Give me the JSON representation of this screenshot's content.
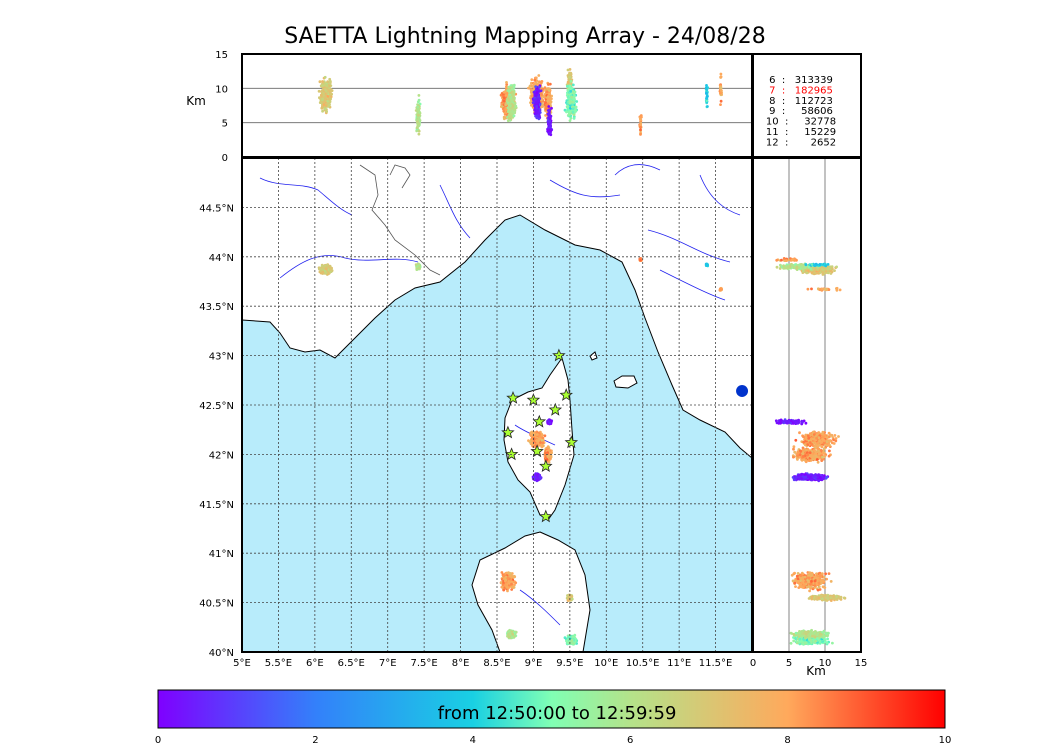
{
  "chart_data": {
    "type": "scatter",
    "title": "SAETTA Lightning Mapping Array - 24/08/28",
    "colorbar": {
      "label": "from 12:50:00 to 12:59:59",
      "ticks": [
        "0",
        "2",
        "4",
        "6",
        "8",
        "10"
      ],
      "range": [
        0,
        10
      ]
    },
    "map": {
      "lon_range": [
        5,
        12
      ],
      "lat_range": [
        40,
        45
      ],
      "lon_ticks": [
        "5°E",
        "5.5°E",
        "6°E",
        "6.5°E",
        "7°E",
        "7.5°E",
        "8°E",
        "8.5°E",
        "9°E",
        "9.5°E",
        "10°E",
        "10.5°E",
        "11°E",
        "11.5°E"
      ],
      "lat_ticks": [
        "40°N",
        "40.5°N",
        "41°N",
        "41.5°N",
        "42°N",
        "42.5°N",
        "43°N",
        "43.5°N",
        "44°N",
        "44.5°N"
      ],
      "grid": true,
      "sea_color": "#b8ecfb"
    },
    "altitude_panel": {
      "ylabel": "Km",
      "ylim": [
        0,
        15
      ],
      "yticks": [
        "0",
        "5",
        "10",
        "15"
      ]
    },
    "side_panel": {
      "xlabel": "Km",
      "xlim": [
        0,
        15
      ],
      "xticks": [
        "0",
        "5",
        "10",
        "15"
      ]
    },
    "stations": [
      {
        "lon": 9.35,
        "lat": 43.0
      },
      {
        "lon": 8.72,
        "lat": 42.57
      },
      {
        "lon": 9.0,
        "lat": 42.55
      },
      {
        "lon": 9.45,
        "lat": 42.6
      },
      {
        "lon": 9.3,
        "lat": 42.45
      },
      {
        "lon": 9.08,
        "lat": 42.33
      },
      {
        "lon": 8.65,
        "lat": 42.22
      },
      {
        "lon": 9.52,
        "lat": 42.12
      },
      {
        "lon": 8.7,
        "lat": 42.0
      },
      {
        "lon": 9.05,
        "lat": 42.03
      },
      {
        "lon": 9.17,
        "lat": 41.88
      },
      {
        "lon": 9.17,
        "lat": 41.37
      }
    ],
    "lightning_clusters": [
      {
        "lon": 6.15,
        "lat": 43.87,
        "spread_lon": 0.12,
        "spread_lat": 0.07,
        "time": 7,
        "alt": 9
      },
      {
        "lon": 7.42,
        "lat": 43.9,
        "spread_lon": 0.04,
        "spread_lat": 0.04,
        "time": 6,
        "alt": 6
      },
      {
        "lon": 9.05,
        "lat": 42.15,
        "spread_lon": 0.15,
        "spread_lat": 0.12,
        "time": 8,
        "alt": 9
      },
      {
        "lon": 9.2,
        "lat": 42.0,
        "spread_lon": 0.06,
        "spread_lat": 0.1,
        "time": 8,
        "alt": 8
      },
      {
        "lon": 9.05,
        "lat": 41.77,
        "spread_lon": 0.07,
        "spread_lat": 0.05,
        "time": 0.5,
        "alt": 8
      },
      {
        "lon": 9.22,
        "lat": 42.33,
        "spread_lon": 0.04,
        "spread_lat": 0.03,
        "time": 0.3,
        "alt": 5
      },
      {
        "lon": 8.65,
        "lat": 40.72,
        "spread_lon": 0.13,
        "spread_lat": 0.13,
        "time": 8,
        "alt": 8
      },
      {
        "lon": 9.5,
        "lat": 40.55,
        "spread_lon": 0.05,
        "spread_lat": 0.05,
        "time": 7,
        "alt": 10
      },
      {
        "lon": 9.52,
        "lat": 40.12,
        "spread_lon": 0.1,
        "spread_lat": 0.06,
        "time": 5,
        "alt": 8
      },
      {
        "lon": 8.7,
        "lat": 40.18,
        "spread_lon": 0.08,
        "spread_lat": 0.05,
        "time": 6,
        "alt": 8
      },
      {
        "lon": 11.38,
        "lat": 43.92,
        "spread_lon": 0.02,
        "spread_lat": 0.02,
        "time": 4,
        "alt": 9
      },
      {
        "lon": 11.57,
        "lat": 43.67,
        "spread_lon": 0.02,
        "spread_lat": 0.02,
        "time": 8,
        "alt": 10
      },
      {
        "lon": 10.47,
        "lat": 43.97,
        "spread_lon": 0.02,
        "spread_lat": 0.02,
        "time": 8,
        "alt": 5
      }
    ],
    "legend_counts": [
      {
        "label": "6  :   313339",
        "color": "#000000"
      },
      {
        "label": "7  :   182965",
        "color": "#ff0000"
      },
      {
        "label": "8  :   112723",
        "color": "#000000"
      },
      {
        "label": "9  :     58606",
        "color": "#000000"
      },
      {
        "label": "10  :     32778",
        "color": "#000000"
      },
      {
        "label": "11  :     15229",
        "color": "#000000"
      },
      {
        "label": "12  :       2652",
        "color": "#000000"
      }
    ]
  }
}
